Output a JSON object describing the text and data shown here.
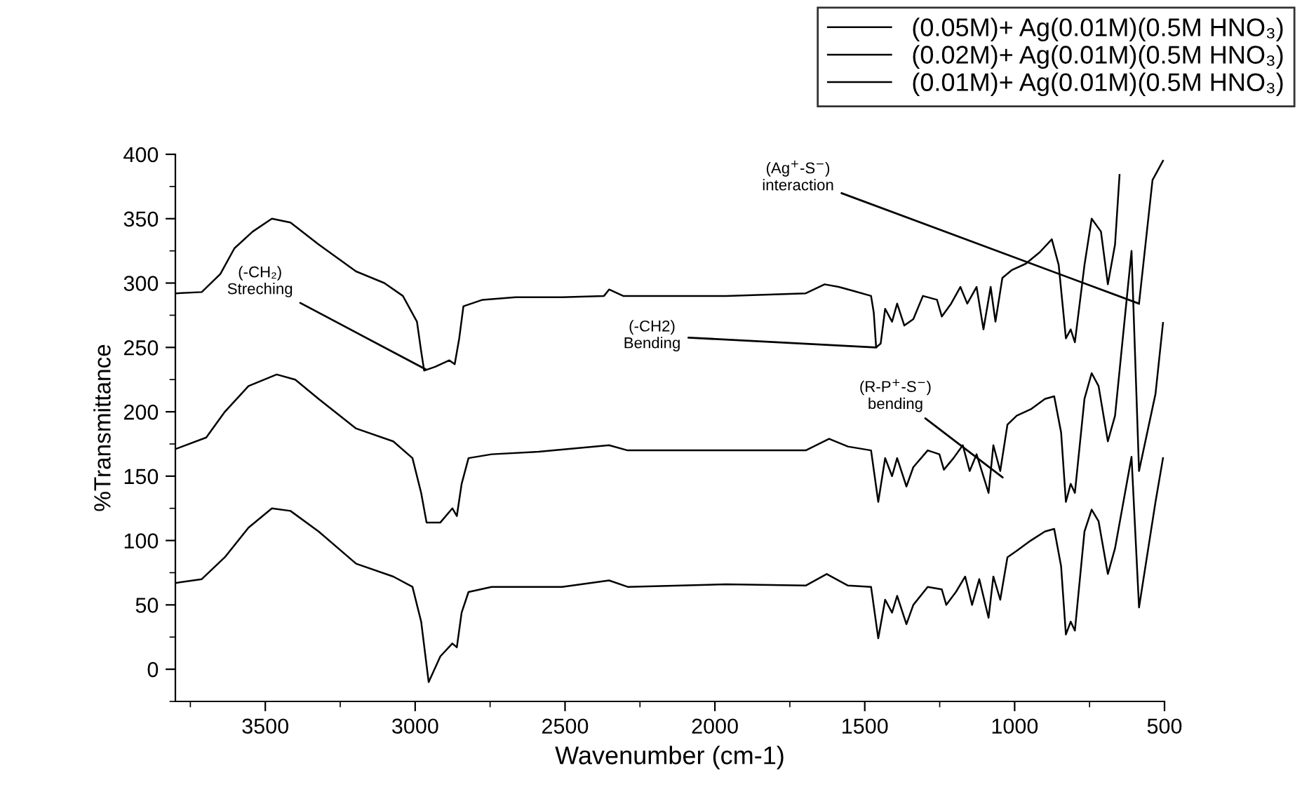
{
  "chart_data": {
    "type": "line",
    "xlabel": "Wavenumber (cm-1)",
    "ylabel": "%Transmittance",
    "xlim": [
      3800,
      500
    ],
    "xticks": [
      3500,
      3000,
      2500,
      2000,
      1500,
      1000,
      500
    ],
    "ylim": [
      -25,
      400
    ],
    "yticks": [
      0,
      50,
      100,
      150,
      200,
      250,
      300,
      350,
      400
    ],
    "grid": false,
    "legend": "top right",
    "marker": "none",
    "line_style": "solid",
    "series": [
      {
        "name": "(0.05M)+ Ag(0.01M)(0.5M HNO₃)",
        "color": "#000000",
        "x": [
          3800,
          3712,
          3650,
          3603,
          3542,
          3478,
          3416,
          3322,
          3197,
          3103,
          3041,
          2994,
          2980,
          2970,
          2933,
          2886,
          2868,
          2853,
          2839,
          2775,
          2665,
          2510,
          2370,
          2353,
          2306,
          1962,
          1697,
          1634,
          1587,
          1540,
          1479,
          1470,
          1462,
          1447,
          1432,
          1409,
          1392,
          1368,
          1338,
          1306,
          1259,
          1243,
          1212,
          1181,
          1158,
          1127,
          1104,
          1080,
          1064,
          1041,
          1010,
          963,
          916,
          876,
          853,
          829,
          813,
          799,
          767,
          743,
          712,
          689,
          665,
          650,
          620,
          585,
          540,
          505
        ],
        "values": [
          292,
          293,
          307,
          327,
          340,
          350,
          347,
          330,
          309,
          300,
          290,
          270,
          247,
          232,
          235,
          240,
          237,
          257,
          282,
          287,
          289,
          289,
          290,
          295,
          290,
          290,
          292,
          299,
          297,
          294,
          290,
          277,
          250,
          253,
          280,
          270,
          284,
          267,
          272,
          290,
          287,
          274,
          284,
          297,
          284,
          297,
          264,
          297,
          270,
          304,
          310,
          315,
          324,
          334,
          314,
          257,
          264,
          254,
          314,
          350,
          340,
          299,
          330,
          384,
          null,
          284,
          380,
          395
        ]
      },
      {
        "name": "(0.02M)+ Ag(0.01M)(0.5M HNO₃)",
        "color": "#000000",
        "x": [
          3800,
          3697,
          3635,
          3556,
          3462,
          3400,
          3322,
          3197,
          3073,
          3009,
          2980,
          2962,
          2916,
          2876,
          2861,
          2845,
          2822,
          2745,
          2588,
          2353,
          2291,
          1962,
          1697,
          1619,
          1556,
          1479,
          1455,
          1432,
          1409,
          1392,
          1361,
          1338,
          1290,
          1251,
          1236,
          1204,
          1173,
          1150,
          1127,
          1087,
          1071,
          1048,
          1024,
          993,
          946,
          899,
          868,
          845,
          829,
          813,
          799,
          767,
          743,
          720,
          689,
          665,
          610,
          585,
          530,
          505
        ],
        "values": [
          171,
          180,
          200,
          220,
          229,
          225,
          210,
          187,
          177,
          164,
          137,
          114,
          114,
          125,
          119,
          144,
          164,
          167,
          169,
          174,
          170,
          170,
          170,
          179,
          173,
          170,
          130,
          164,
          150,
          164,
          142,
          157,
          170,
          167,
          155,
          164,
          174,
          154,
          167,
          137,
          174,
          154,
          190,
          197,
          202,
          210,
          212,
          184,
          130,
          144,
          137,
          210,
          230,
          220,
          177,
          197,
          325,
          154,
          214,
          269
        ]
      },
      {
        "name": "(0.01M)+ Ag(0.01M)(0.5M HNO₃)",
        "color": "#000000",
        "x": [
          3800,
          3712,
          3635,
          3556,
          3478,
          3416,
          3322,
          3197,
          3073,
          3009,
          2980,
          2955,
          2916,
          2876,
          2861,
          2845,
          2822,
          2745,
          2510,
          2353,
          2291,
          1962,
          1697,
          1627,
          1556,
          1479,
          1455,
          1432,
          1409,
          1392,
          1361,
          1338,
          1290,
          1243,
          1228,
          1196,
          1165,
          1142,
          1118,
          1087,
          1071,
          1048,
          1024,
          993,
          946,
          899,
          868,
          845,
          829,
          813,
          799,
          767,
          743,
          720,
          689,
          665,
          610,
          585,
          530,
          505
        ],
        "values": [
          67,
          70,
          87,
          110,
          125,
          123,
          107,
          82,
          72,
          64,
          37,
          -10,
          10,
          20,
          17,
          44,
          60,
          64,
          64,
          69,
          64,
          66,
          65,
          74,
          65,
          64,
          24,
          54,
          44,
          57,
          35,
          50,
          64,
          62,
          50,
          60,
          72,
          50,
          70,
          40,
          72,
          54,
          87,
          92,
          100,
          107,
          109,
          80,
          27,
          37,
          30,
          107,
          124,
          115,
          74,
          94,
          165,
          48,
          130,
          164
        ]
      }
    ],
    "annotations": [
      {
        "text": "(-CH₂)\nStreching",
        "x": 2965,
        "y": 233
      },
      {
        "text": "(-CH2)\nBending",
        "x": 1462,
        "y": 250
      },
      {
        "text": "(Ag$^{+}$-S$^{−}$)\ninteraction",
        "x": 585,
        "y": 284
      },
      {
        "text": "(R-P$^{+}$-S$^{−}$)\nbending",
        "x": 1040,
        "y": 149
      }
    ]
  }
}
